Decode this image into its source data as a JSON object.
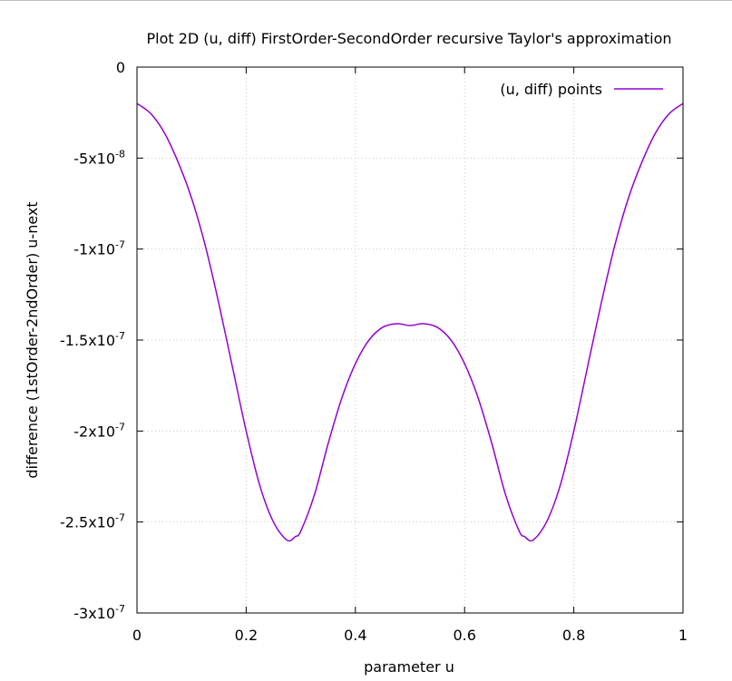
{
  "chart_data": {
    "type": "line",
    "title": "Plot 2D (u, diff) FirstOrder-SecondOrder recursive Taylor's approximation",
    "xlabel": "parameter u",
    "ylabel": "difference (1stOrder-2ndOrder) u-next",
    "xlim": [
      0,
      1
    ],
    "ylim": [
      -3e-07,
      0
    ],
    "x_ticks": [
      {
        "value": 0,
        "label": "0"
      },
      {
        "value": 0.2,
        "label": "0.2"
      },
      {
        "value": 0.4,
        "label": "0.4"
      },
      {
        "value": 0.6,
        "label": "0.6"
      },
      {
        "value": 0.8,
        "label": "0.8"
      },
      {
        "value": 1,
        "label": "1"
      }
    ],
    "y_ticks": [
      {
        "value": 0,
        "base": "0",
        "exp": ""
      },
      {
        "value": -5e-08,
        "base": "-5x10",
        "exp": "-8"
      },
      {
        "value": -1e-07,
        "base": "-1x10",
        "exp": "-7"
      },
      {
        "value": -1.5e-07,
        "base": "-1.5x10",
        "exp": "-7"
      },
      {
        "value": -2e-07,
        "base": "-2x10",
        "exp": "-7"
      },
      {
        "value": -2.5e-07,
        "base": "-2.5x10",
        "exp": "-7"
      },
      {
        "value": -3e-07,
        "base": "-3x10",
        "exp": "-7"
      }
    ],
    "grid": true,
    "legend_position": "top-right",
    "series": [
      {
        "name": "(u, diff) points",
        "color": "#9400d3",
        "x": [
          0,
          0.025,
          0.05,
          0.075,
          0.1,
          0.125,
          0.15,
          0.175,
          0.2,
          0.225,
          0.25,
          0.275,
          0.29,
          0.3,
          0.325,
          0.35,
          0.375,
          0.4,
          0.425,
          0.45,
          0.475,
          0.5,
          0.525,
          0.55,
          0.575,
          0.6,
          0.625,
          0.65,
          0.675,
          0.7,
          0.71,
          0.725,
          0.75,
          0.775,
          0.8,
          0.825,
          0.85,
          0.875,
          0.9,
          0.925,
          0.95,
          0.975,
          1
        ],
        "y": [
          -2e-08,
          -2.55e-08,
          -3.6e-08,
          -5.2e-08,
          -7.2e-08,
          -9.8e-08,
          -1.3e-07,
          -1.65e-07,
          -2e-07,
          -2.3e-07,
          -2.5e-07,
          -2.6e-07,
          -2.58e-07,
          -2.55e-07,
          -2.35e-07,
          -2.07e-07,
          -1.82e-07,
          -1.63e-07,
          -1.5e-07,
          -1.43e-07,
          -1.41e-07,
          -1.42e-07,
          -1.41e-07,
          -1.43e-07,
          -1.5e-07,
          -1.63e-07,
          -1.82e-07,
          -2.07e-07,
          -2.35e-07,
          -2.55e-07,
          -2.58e-07,
          -2.6e-07,
          -2.5e-07,
          -2.3e-07,
          -2e-07,
          -1.65e-07,
          -1.3e-07,
          -9.8e-08,
          -7.2e-08,
          -5.2e-08,
          -3.6e-08,
          -2.55e-08,
          -2e-08
        ]
      }
    ]
  }
}
